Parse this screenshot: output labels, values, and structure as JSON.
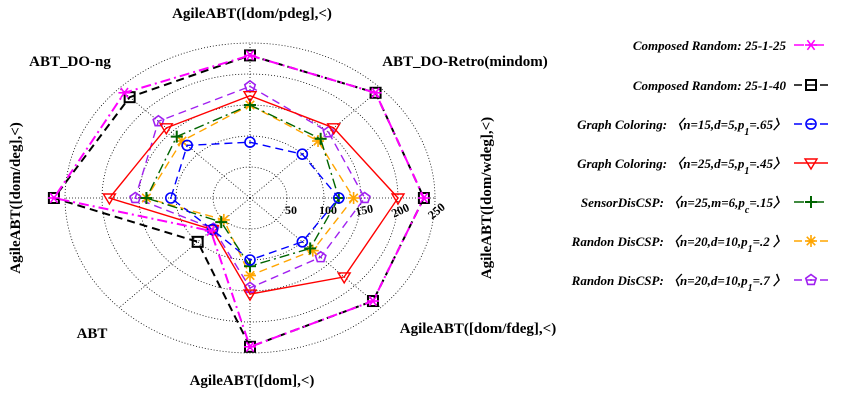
{
  "chart_data": {
    "type": "radar",
    "title": "",
    "axes": [
      "AgileABT([dom/pdeg],<)",
      "ABT_DO-Retro(mindom)",
      "AgileABT([dom/wdeg],<)",
      "AgileABT([dom/fdeg],<)",
      "AgileABT([dom],<)",
      "ABT",
      "AgileABT([dom/deg],<)",
      "ABT_DO-ng"
    ],
    "radial_ticks": [
      "50",
      "100",
      "150",
      "200",
      "250"
    ],
    "radial_tick_values": [
      50,
      100,
      150,
      200,
      250
    ],
    "rmax": 250,
    "grid": "dotted",
    "legend_position": "right",
    "series": [
      {
        "name": "Composed Random: 25-1-25",
        "color": "#ff00ff",
        "dash": "dashdot",
        "marker": "star",
        "values": [
          230,
          240,
          235,
          235,
          240,
          75,
          265,
          240
        ]
      },
      {
        "name": "Composed Random: 25-1-40",
        "color": "#000000",
        "dash": "dash",
        "marker": "square",
        "values": [
          230,
          240,
          235,
          235,
          240,
          100,
          265,
          230
        ]
      },
      {
        "name": "Graph Coloring: 〈n=15,d=5,p₁=.65〉",
        "color": "#0000ff",
        "dash": "dash",
        "marker": "circle",
        "values": [
          90,
          100,
          120,
          100,
          100,
          72,
          107,
          120
        ]
      },
      {
        "name": "Graph Coloring: 〈n=25,d=5,p₁=.45〉",
        "color": "#ff0000",
        "dash": "solid",
        "marker": "triangle-down",
        "values": [
          165,
          160,
          200,
          180,
          155,
          72,
          190,
          160
        ]
      },
      {
        "name": "SensorDisCSP: 〈n=25,m=6,pᶜ=.15〉",
        "color": "#006400",
        "dash": "dashdot",
        "marker": "plus",
        "values": [
          150,
          135,
          120,
          115,
          110,
          55,
          140,
          140
        ]
      },
      {
        "name": "Randon DisCSP: 〈n=20,d=10,p₁=.2〉",
        "color": "#ffa500",
        "dash": "dash",
        "marker": "asterisk",
        "values": [
          150,
          130,
          140,
          120,
          125,
          50,
          140,
          130
        ]
      },
      {
        "name": "Randon DisCSP: 〈n=20,d=10,p₁=.7〉",
        "color": "#a020f0",
        "dash": "dash",
        "marker": "pentagon",
        "values": [
          180,
          150,
          155,
          135,
          145,
          70,
          155,
          175
        ]
      }
    ]
  },
  "legend": {
    "items": [
      {
        "prefix": "Composed Random: 25-1-25"
      },
      {
        "prefix": "Composed Random: 25-1-40"
      },
      {
        "prefix": "Graph Coloring: 〈n=15,d=5,p",
        "sub": "1",
        "suffix": "=.65〉"
      },
      {
        "prefix": "Graph Coloring: 〈n=25,d=5,p",
        "sub": "1",
        "suffix": "=.45〉"
      },
      {
        "prefix": "SensorDisCSP: 〈n=25,m=6,p",
        "sub": "c",
        "suffix": "=.15〉"
      },
      {
        "prefix": "Randon DisCSP: 〈n=20,d=10,p",
        "sub": "1",
        "suffix": "=.2 〉"
      },
      {
        "prefix": "Randon DisCSP: 〈n=20,d=10,p",
        "sub": "1",
        "suffix": "=.7 〉"
      }
    ]
  }
}
